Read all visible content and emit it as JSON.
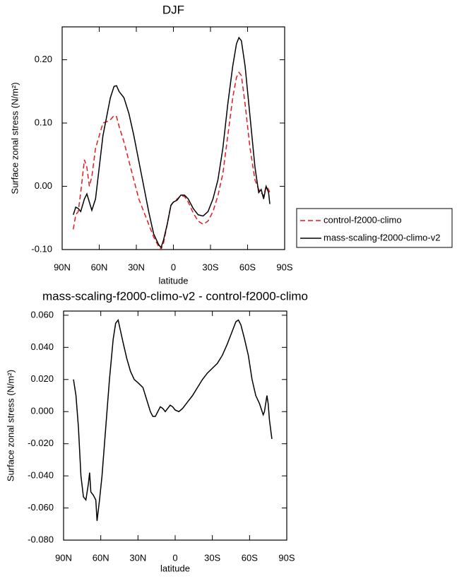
{
  "chart_data": [
    {
      "type": "line",
      "title": "DJF",
      "x_label": "latitude",
      "y_label": "Surface zonal stress (N/m²)",
      "xlim": [
        90,
        -90
      ],
      "xticks": [
        {
          "value": 90,
          "label": "90N"
        },
        {
          "value": 60,
          "label": "60N"
        },
        {
          "value": 30,
          "label": "30N"
        },
        0,
        {
          "value": -30,
          "label": "30S"
        },
        {
          "value": -60,
          "label": "60S"
        },
        {
          "value": -90,
          "label": "90S"
        }
      ],
      "ylim": [
        -0.1,
        0.252
      ],
      "yticks": [
        {
          "value": -0.1,
          "label": "-0.10"
        },
        {
          "value": 0,
          "label": "0.00"
        },
        {
          "value": 0.1,
          "label": "0.10"
        },
        {
          "value": 0.2,
          "label": "0.20"
        }
      ],
      "legend": "right",
      "x": [
        81,
        79,
        77,
        75,
        72,
        70,
        68,
        66,
        63,
        60,
        57,
        54,
        51,
        48,
        46,
        44,
        40,
        36,
        32,
        28,
        24,
        20,
        16,
        12,
        10,
        8,
        5,
        2,
        0,
        -3,
        -6,
        -9,
        -12,
        -16,
        -20,
        -24,
        -28,
        -32,
        -36,
        -40,
        -44,
        -48,
        -51,
        -53,
        -55,
        -58,
        -62,
        -66,
        -69,
        -71,
        -73,
        -75,
        -77,
        -78
      ],
      "series": [
        {
          "name": "control-f2000-climo",
          "color": "#e41a1c",
          "line_style": "dashed",
          "values": [
            -0.068,
            -0.045,
            -0.04,
            -0.01,
            0.042,
            0.03,
            0.0,
            0.015,
            0.06,
            0.08,
            0.1,
            0.102,
            0.105,
            0.112,
            0.11,
            0.095,
            0.07,
            0.04,
            0.01,
            -0.02,
            -0.04,
            -0.06,
            -0.08,
            -0.095,
            -0.1,
            -0.09,
            -0.06,
            -0.03,
            -0.025,
            -0.02,
            -0.015,
            -0.016,
            -0.025,
            -0.042,
            -0.055,
            -0.06,
            -0.055,
            -0.04,
            -0.015,
            0.02,
            0.08,
            0.14,
            0.172,
            0.18,
            0.175,
            0.13,
            0.06,
            0.01,
            -0.005,
            -0.01,
            -0.015,
            0.0,
            -0.005,
            -0.01
          ]
        },
        {
          "name": "mass-scaling-f2000-climo-v2",
          "color": "#000000",
          "line_style": "solid",
          "values": [
            -0.045,
            -0.033,
            -0.035,
            -0.04,
            -0.02,
            -0.012,
            -0.025,
            -0.038,
            -0.02,
            0.03,
            0.08,
            0.11,
            0.14,
            0.158,
            0.159,
            0.15,
            0.14,
            0.115,
            0.08,
            0.04,
            0.0,
            -0.04,
            -0.075,
            -0.092,
            -0.097,
            -0.085,
            -0.06,
            -0.03,
            -0.025,
            -0.022,
            -0.014,
            -0.014,
            -0.02,
            -0.035,
            -0.045,
            -0.047,
            -0.04,
            -0.02,
            0.01,
            0.06,
            0.13,
            0.19,
            0.225,
            0.235,
            0.23,
            0.19,
            0.11,
            0.03,
            -0.01,
            -0.005,
            -0.02,
            0.0,
            -0.01,
            -0.028
          ]
        }
      ]
    },
    {
      "type": "line",
      "title": "mass-scaling-f2000-climo-v2 - control-f2000-climo",
      "x_label": "latitude",
      "y_label": "Surface zonal stress (N/m²)",
      "xlim": [
        90,
        -90
      ],
      "xticks": [
        {
          "value": 90,
          "label": "90N"
        },
        {
          "value": 60,
          "label": "60N"
        },
        {
          "value": 30,
          "label": "30N"
        },
        0,
        {
          "value": -30,
          "label": "30S"
        },
        {
          "value": -60,
          "label": "60S"
        },
        {
          "value": -90,
          "label": "90S"
        }
      ],
      "ylim": [
        -0.08,
        0.0626
      ],
      "yticks": [
        {
          "value": -0.08,
          "label": "-0.080"
        },
        {
          "value": -0.06,
          "label": "-0.060"
        },
        {
          "value": -0.04,
          "label": "-0.040"
        },
        {
          "value": -0.02,
          "label": "-0.020"
        },
        {
          "value": 0,
          "label": "0.000"
        },
        {
          "value": 0.02,
          "label": "0.020"
        },
        {
          "value": 0.04,
          "label": "0.040"
        },
        {
          "value": 0.06,
          "label": "0.060"
        }
      ],
      "x": [
        82,
        80,
        78,
        76,
        74,
        72,
        70,
        69,
        68,
        66,
        64,
        63,
        61,
        59,
        56,
        53,
        50,
        48,
        46,
        44,
        42,
        39,
        36,
        33,
        30,
        26,
        22,
        20,
        18,
        16,
        14,
        12,
        10,
        8,
        6,
        4,
        2,
        0,
        -3,
        -6,
        -10,
        -14,
        -18,
        -22,
        -26,
        -30,
        -34,
        -38,
        -42,
        -46,
        -49,
        -51,
        -53,
        -56,
        -59,
        -62,
        -65,
        -68,
        -71,
        -72,
        -74,
        -75,
        -76,
        -78
      ],
      "series": [
        {
          "color": "#000000",
          "line_style": "solid",
          "values": [
            0.02,
            0.01,
            -0.01,
            -0.04,
            -0.053,
            -0.055,
            -0.045,
            -0.038,
            -0.05,
            -0.052,
            -0.055,
            -0.068,
            -0.055,
            -0.04,
            -0.01,
            0.02,
            0.045,
            0.055,
            0.057,
            0.05,
            0.043,
            0.033,
            0.025,
            0.02,
            0.018,
            0.015,
            0.005,
            0.0,
            -0.003,
            -0.003,
            0.0,
            0.003,
            0.002,
            0.0,
            0.002,
            0.004,
            0.003,
            0.001,
            0.0,
            0.002,
            0.006,
            0.01,
            0.015,
            0.02,
            0.024,
            0.027,
            0.03,
            0.035,
            0.042,
            0.05,
            0.056,
            0.057,
            0.054,
            0.045,
            0.035,
            0.02,
            0.01,
            0.005,
            -0.002,
            0.0,
            0.01,
            0.005,
            -0.005,
            -0.017
          ]
        }
      ]
    }
  ]
}
